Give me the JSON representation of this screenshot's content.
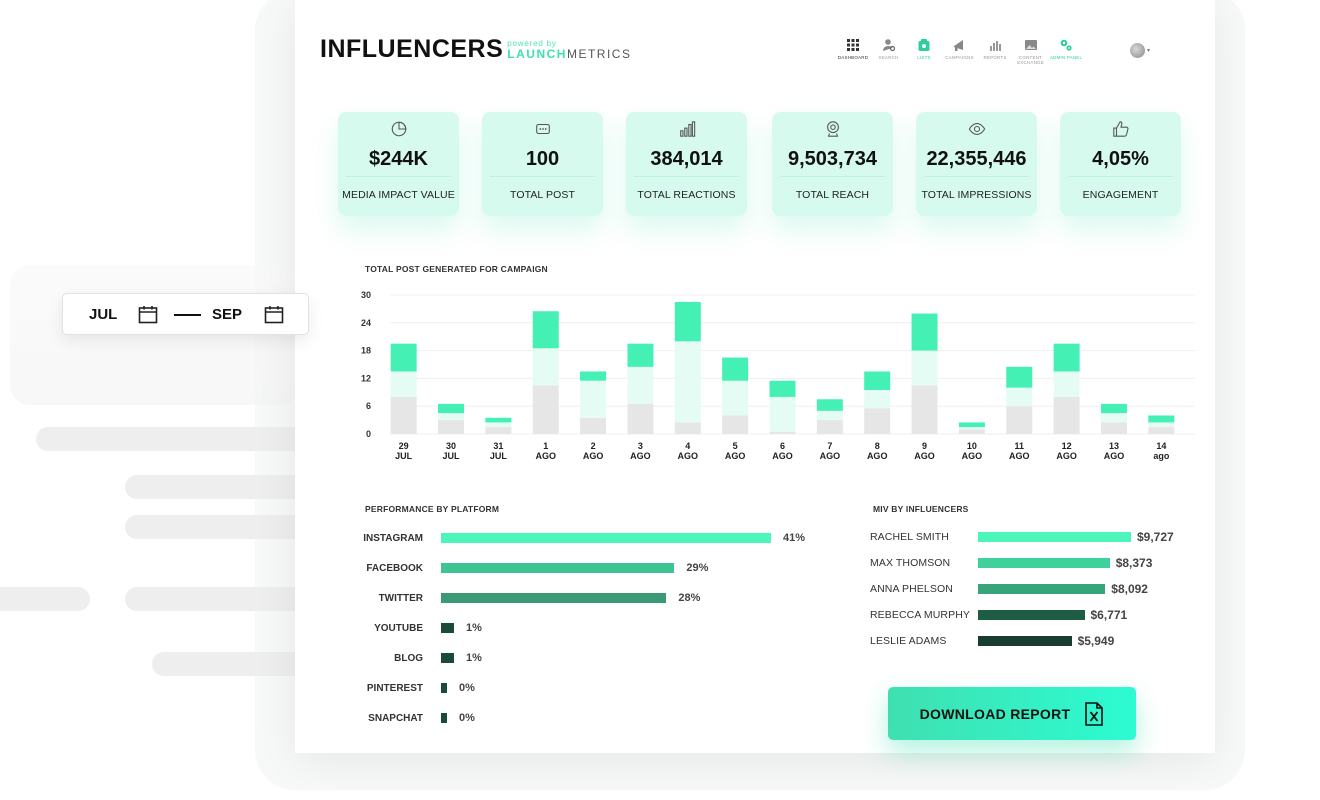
{
  "brand": {
    "name": "INFLUENCERS",
    "powered_by": "powered by",
    "partner_a": "LAUNCH",
    "partner_b": "METRICS"
  },
  "nav": [
    {
      "label": "DASHBOARD",
      "icon": "grid-icon"
    },
    {
      "label": "SEARCH",
      "icon": "search-user-icon"
    },
    {
      "label": "LISTS",
      "icon": "list-icon"
    },
    {
      "label": "CAMPAIGNS",
      "icon": "megaphone-icon"
    },
    {
      "label": "REPORTS",
      "icon": "bar-chart-icon"
    },
    {
      "label": "CONTENT EXCHANGE",
      "icon": "image-icon"
    },
    {
      "label": "ADMIN PANEL",
      "icon": "gears-icon"
    }
  ],
  "kpis": [
    {
      "value": "$244K",
      "label": "MEDIA IMPACT VALUE",
      "icon": "pie-icon"
    },
    {
      "value": "100",
      "label": "TOTAL POST",
      "icon": "chat-icon"
    },
    {
      "value": "384,014",
      "label": "TOTAL REACTIONS",
      "icon": "bars-icon"
    },
    {
      "value": "9,503,734",
      "label": "TOTAL REACH",
      "icon": "webcam-icon"
    },
    {
      "value": "22,355,446",
      "label": "TOTAL IMPRESSIONS",
      "icon": "eye-icon"
    },
    {
      "value": "4,05%",
      "label": "ENGAGEMENT",
      "icon": "thumbs-up-icon"
    }
  ],
  "chart_title": "TOTAL POST GENERATED FOR CAMPAIGN",
  "chart_data": {
    "type": "bar",
    "stacked": true,
    "ylim": [
      0,
      30
    ],
    "yticks": [
      "0",
      "6",
      "12",
      "18",
      "24",
      "30"
    ],
    "grid": true,
    "categories": [
      [
        "29",
        "JUL"
      ],
      [
        "30",
        "JUL"
      ],
      [
        "31",
        "JUL"
      ],
      [
        "1",
        "AGO"
      ],
      [
        "2",
        "AGO"
      ],
      [
        "3",
        "AGO"
      ],
      [
        "4",
        "AGO"
      ],
      [
        "5",
        "AGO"
      ],
      [
        "6",
        "AGO"
      ],
      [
        "7",
        "AGO"
      ],
      [
        "8",
        "AGO"
      ],
      [
        "9",
        "AGO"
      ],
      [
        "10",
        "AGO"
      ],
      [
        "11",
        "AGO"
      ],
      [
        "12",
        "AGO"
      ],
      [
        "13",
        "AGO"
      ],
      [
        "14",
        "ago"
      ]
    ],
    "series": [
      {
        "color": "#e6e6e6",
        "values": [
          8,
          3,
          1.5,
          10.5,
          3.5,
          6.5,
          2.5,
          4,
          0.5,
          3,
          5.5,
          10.5,
          1,
          6,
          8,
          2.5,
          1.5
        ]
      },
      {
        "color": "#e4fcf4",
        "values": [
          5.5,
          1.5,
          1,
          8,
          8,
          8,
          17.5,
          7.5,
          7.5,
          2,
          4,
          7.5,
          0.5,
          4,
          5.5,
          2,
          1
        ]
      },
      {
        "color": "#45f0b5",
        "values": [
          6,
          2,
          1,
          8,
          2,
          5,
          8.5,
          5,
          3.5,
          2.5,
          4,
          8,
          1,
          4.5,
          6,
          2,
          1.5
        ]
      }
    ]
  },
  "platform": {
    "title": "PERFORMANCE BY PLATFORM",
    "rows": [
      {
        "label": "INSTAGRAM",
        "value": 41,
        "pct": "41%",
        "color": "#4cf5b9"
      },
      {
        "label": "FACEBOOK",
        "value": 29,
        "pct": "29%",
        "color": "#3ec493"
      },
      {
        "label": "TWITTER",
        "value": 28,
        "pct": "28%",
        "color": "#3a9a76"
      },
      {
        "label": "YOUTUBE",
        "value": 1,
        "pct": "1%",
        "color": "#1c4a39"
      },
      {
        "label": "BLOG",
        "value": 1,
        "pct": "1%",
        "color": "#1c4a39"
      },
      {
        "label": "PINTEREST",
        "value": 0,
        "pct": "0%",
        "color": "#1c4a39"
      },
      {
        "label": "SNAPCHAT",
        "value": 0,
        "pct": "0%",
        "color": "#1c4a39"
      }
    ]
  },
  "influencers": {
    "title": "MIV BY INFLUENCERS",
    "rows": [
      {
        "name": "RACHEL SMITH",
        "value": 9727,
        "display": "$9,727",
        "color": "#4cf5b9"
      },
      {
        "name": "MAX THOMSON",
        "value": 8373,
        "display": "$8,373",
        "color": "#3ed19c"
      },
      {
        "name": "ANNA PHELSON",
        "value": 8092,
        "display": "$8,092",
        "color": "#38a47c"
      },
      {
        "name": "REBECCA MURPHY",
        "value": 6771,
        "display": "$6,771",
        "color": "#1f5c46"
      },
      {
        "name": "LESLIE ADAMS",
        "value": 5949,
        "display": "$5,949",
        "color": "#183d30"
      }
    ]
  },
  "download": {
    "label": "DOWNLOAD REPORT",
    "icon": "excel-file-icon"
  },
  "datepicker": {
    "from": "JUL",
    "to": "SEP",
    "icon": "calendar-icon"
  }
}
